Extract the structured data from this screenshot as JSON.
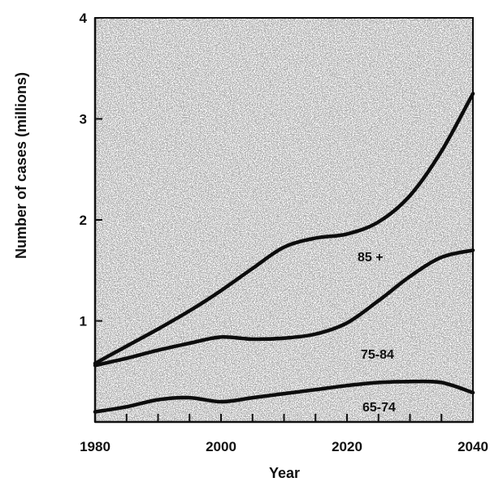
{
  "chart_data": {
    "type": "area",
    "xlabel": "Year",
    "ylabel": "Number of cases (millions)",
    "xlim": [
      1980,
      2040
    ],
    "ylim": [
      0,
      4
    ],
    "x_ticks": [
      1980,
      2000,
      2020,
      2040
    ],
    "y_ticks": [
      1,
      2,
      3,
      4
    ],
    "grid": false,
    "stacked": true,
    "x": [
      1980,
      1985,
      1990,
      1995,
      2000,
      2005,
      2010,
      2015,
      2020,
      2025,
      2030,
      2035,
      2040
    ],
    "series": [
      {
        "name": "65-74",
        "values": [
          0.1,
          0.15,
          0.22,
          0.24,
          0.2,
          0.24,
          0.28,
          0.32,
          0.36,
          0.39,
          0.4,
          0.39,
          0.29
        ]
      },
      {
        "name": "75-84",
        "values": [
          0.56,
          0.63,
          0.71,
          0.78,
          0.84,
          0.82,
          0.83,
          0.87,
          0.98,
          1.2,
          1.44,
          1.63,
          1.7
        ]
      },
      {
        "name": "85 +",
        "values": [
          0.58,
          0.75,
          0.92,
          1.1,
          1.3,
          1.52,
          1.73,
          1.82,
          1.86,
          1.98,
          2.24,
          2.68,
          3.25
        ]
      }
    ],
    "labels": {
      "s65_74": "65-74",
      "s75_84": "75-84",
      "s85": "85 +"
    }
  }
}
